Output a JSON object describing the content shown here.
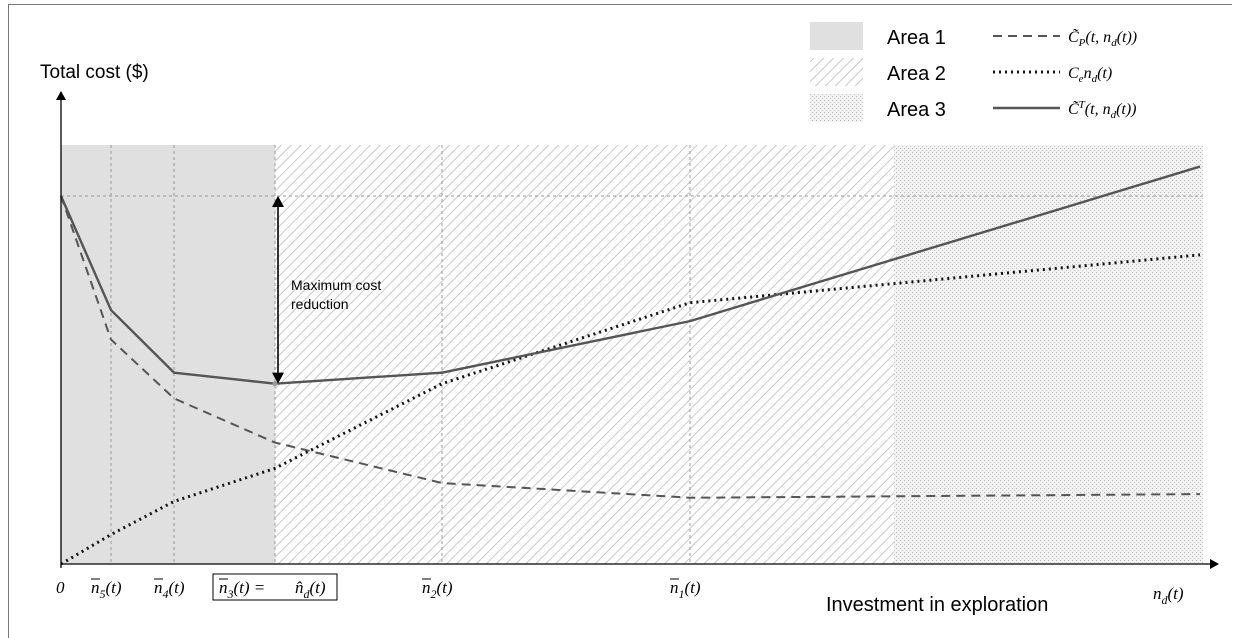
{
  "chart_data": {
    "type": "line",
    "title": "",
    "ylabel": "Total cost ($)",
    "xlabel": "Investment in exploration",
    "x_end_label": "n_d(t)",
    "x": [
      0,
      1,
      2,
      3,
      4,
      5,
      6
    ],
    "ticks": [
      {
        "x": 0,
        "label": "0",
        "boxed": false
      },
      {
        "x": 1,
        "label": "n̄5(t)",
        "boxed": false
      },
      {
        "x": 2,
        "label": "n̄4(t)",
        "boxed": false
      },
      {
        "x": 3,
        "label": "n̄3(t) = n̂d(t)",
        "boxed": true
      },
      {
        "x": 4,
        "label": "n̄2(t)",
        "boxed": false
      },
      {
        "x": 5,
        "label": "n̄1(t)",
        "boxed": false
      }
    ],
    "series": [
      {
        "name": "C̃p(t, nd(t))",
        "style": "dashed",
        "values": [
          100,
          61,
          45,
          33,
          22,
          18,
          19
        ]
      },
      {
        "name": "Ce nd(t)",
        "style": "dotted",
        "values": [
          0,
          8,
          17,
          26,
          49,
          71,
          84
        ]
      },
      {
        "name": "C̃T(t, nd(t))",
        "style": "solid",
        "values": [
          100,
          69,
          52,
          49,
          52,
          66,
          108
        ]
      }
    ],
    "areas": [
      {
        "name": "Area 1",
        "from": 0,
        "to": 3,
        "fill": "gray"
      },
      {
        "name": "Area 2",
        "from": 3,
        "to": 5.4,
        "fill": "hatch"
      },
      {
        "name": "Area 3",
        "from": 5.4,
        "to": 6,
        "fill": "dots"
      }
    ],
    "annotation": {
      "text": [
        "Maximum cost",
        "reduction"
      ],
      "x": 3,
      "from": 100,
      "to": 49
    },
    "reference_level": 100,
    "ylim": [
      0,
      120
    ],
    "grid": false,
    "legend_position": "top-right"
  },
  "colors": {
    "area1": "#e0e0e0",
    "line": "#555555",
    "dotted": "#111111",
    "axis": "#000000",
    "hatch": "#cccccc"
  }
}
